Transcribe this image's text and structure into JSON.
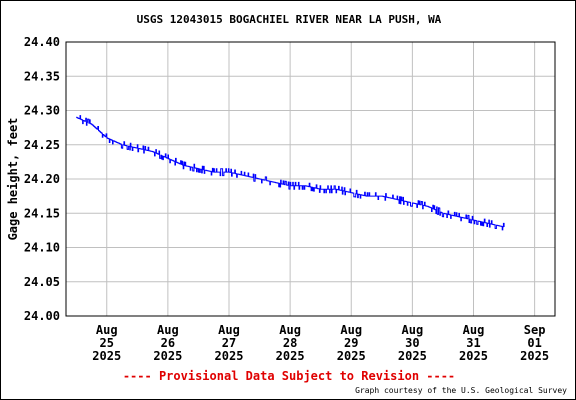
{
  "chart_data": {
    "type": "line",
    "title": "USGS 12043015 BOGACHIEL RIVER NEAR LA PUSH, WA",
    "ylabel": "Gage height, feet",
    "xlabel": "",
    "ylim": [
      24.0,
      24.4
    ],
    "yticks": [
      "24.00",
      "24.05",
      "24.10",
      "24.15",
      "24.20",
      "24.25",
      "24.30",
      "24.35",
      "24.40"
    ],
    "xticks": [
      {
        "month": "Aug",
        "day": "25",
        "year": "2025"
      },
      {
        "month": "Aug",
        "day": "26",
        "year": "2025"
      },
      {
        "month": "Aug",
        "day": "27",
        "year": "2025"
      },
      {
        "month": "Aug",
        "day": "28",
        "year": "2025"
      },
      {
        "month": "Aug",
        "day": "29",
        "year": "2025"
      },
      {
        "month": "Aug",
        "day": "30",
        "year": "2025"
      },
      {
        "month": "Aug",
        "day": "31",
        "year": "2025"
      },
      {
        "month": "Sep",
        "day": "01",
        "year": "2025"
      }
    ],
    "grid": true,
    "line_color": "#0000ff",
    "series": [
      {
        "x": [
          "2025-08-24 12:00",
          "2025-08-24 18:00",
          "2025-08-25 00:00",
          "2025-08-25 06:00",
          "2025-08-25 12:00",
          "2025-08-25 18:00",
          "2025-08-26 00:00",
          "2025-08-26 06:00",
          "2025-08-26 12:00",
          "2025-08-26 18:00",
          "2025-08-27 00:00",
          "2025-08-27 06:00",
          "2025-08-27 12:00",
          "2025-08-27 18:00",
          "2025-08-28 00:00",
          "2025-08-28 06:00",
          "2025-08-28 12:00",
          "2025-08-28 18:00",
          "2025-08-29 00:00",
          "2025-08-29 06:00",
          "2025-08-29 12:00",
          "2025-08-29 18:00",
          "2025-08-30 00:00",
          "2025-08-30 06:00",
          "2025-08-30 12:00",
          "2025-08-30 18:00",
          "2025-08-31 00:00",
          "2025-08-31 06:00",
          "2025-08-31 12:00"
        ],
        "values": [
          24.29,
          24.28,
          24.26,
          24.25,
          24.245,
          24.24,
          24.23,
          24.22,
          24.215,
          24.21,
          24.21,
          24.205,
          24.2,
          24.195,
          24.19,
          24.19,
          24.185,
          24.185,
          24.18,
          24.175,
          24.175,
          24.17,
          24.165,
          24.16,
          24.15,
          24.145,
          24.14,
          24.135,
          24.13
        ]
      }
    ]
  },
  "footer": {
    "provisional": "---- Provisional Data Subject to Revision ----",
    "courtesy": "Graph courtesy of the U.S. Geological Survey"
  },
  "colors": {
    "line": "#0000ff",
    "grid": "#c0c0c0",
    "provisional": "#e00000"
  }
}
